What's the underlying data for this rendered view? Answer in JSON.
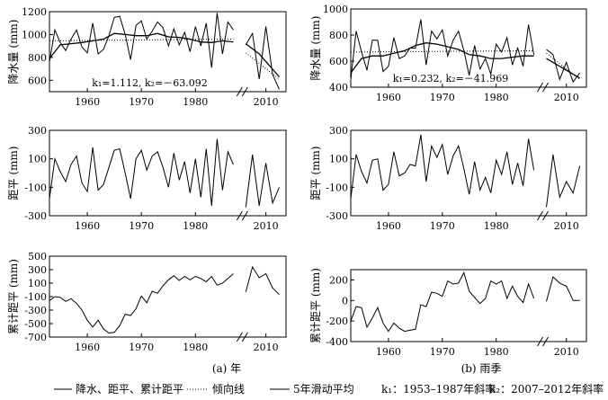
{
  "captions": {
    "a": "(a) 年",
    "b": "(b) 雨季"
  },
  "legend": {
    "items": [
      {
        "label": "降水、距平、累计距平",
        "style": "solid"
      },
      {
        "label": "倾向线",
        "style": "dotted"
      },
      {
        "label": "5年滑动平均",
        "style": "solid"
      }
    ],
    "k1_note": "k₁：1953–1987年斜率",
    "k2_note": "k₂：2007–2012年斜率"
  },
  "chart_data": [
    {
      "id": "a-precip",
      "type": "line",
      "ylabel": "降水量 (mm)",
      "xlim": [
        1953,
        2013
      ],
      "ylim": [
        500,
        1200
      ],
      "yticks": [
        600,
        800,
        1000,
        1200
      ],
      "xticks": [
        1960,
        1970,
        1980,
        2010
      ],
      "annotation": "k₁=1.112, k₂=－63.092",
      "series": [
        {
          "role": "data",
          "x": [
            1953,
            1954,
            1955,
            1956,
            1957,
            1958,
            1959,
            1960,
            1961,
            1962,
            1963,
            1964,
            1965,
            1966,
            1967,
            1968,
            1969,
            1970,
            1971,
            1972,
            1973,
            1974,
            1975,
            1976,
            1977,
            1978,
            1979,
            1980,
            1981,
            1982,
            1983,
            1984,
            1985,
            1986,
            1987,
            2007,
            2008,
            2009,
            2010,
            2011,
            2012
          ],
          "y": [
            760,
            1040,
            930,
            860,
            960,
            1040,
            890,
            840,
            1100,
            830,
            870,
            990,
            1150,
            1160,
            1000,
            780,
            1080,
            1120,
            960,
            1030,
            1110,
            1060,
            900,
            1050,
            910,
            1020,
            850,
            1070,
            900,
            1100,
            710,
            1190,
            830,
            1110,
            1040,
            910,
            1010,
            610,
            1070,
            650,
            520
          ]
        },
        {
          "role": "5年滑动平均",
          "x": [
            1953,
            1955,
            1957,
            1959,
            1961,
            1963,
            1965,
            1967,
            1969,
            1971,
            1973,
            1975,
            1977,
            1979,
            1981,
            1983,
            1985,
            1987,
            2007,
            2009,
            2012
          ],
          "y": [
            790,
            910,
            920,
            930,
            945,
            960,
            1010,
            1000,
            990,
            990,
            1010,
            980,
            975,
            960,
            935,
            930,
            945,
            935,
            920,
            830,
            630
          ]
        },
        {
          "role": "倾向线",
          "x": [
            1953,
            1987
          ],
          "y": [
            945,
            960
          ]
        },
        {
          "role": "倾向线",
          "x": [
            2007,
            2012
          ],
          "y": [
            840,
            610
          ]
        }
      ]
    },
    {
      "id": "a-anomaly",
      "type": "line",
      "ylabel": "距平 (mm)",
      "xlim": [
        1953,
        2013
      ],
      "ylim": [
        -300,
        300
      ],
      "yticks": [
        -300,
        -100,
        100,
        300
      ],
      "xticks": [
        1960,
        1970,
        1980,
        2010
      ],
      "series": [
        {
          "role": "data",
          "x": [
            1953,
            1954,
            1955,
            1956,
            1957,
            1958,
            1959,
            1960,
            1961,
            1962,
            1963,
            1964,
            1965,
            1966,
            1967,
            1968,
            1969,
            1970,
            1971,
            1972,
            1973,
            1974,
            1975,
            1976,
            1977,
            1978,
            1979,
            1980,
            1981,
            1982,
            1983,
            1984,
            1985,
            1986,
            1987,
            2007,
            2008,
            2009,
            2010,
            2011,
            2012
          ],
          "y": [
            -180,
            100,
            10,
            -60,
            60,
            120,
            -70,
            -130,
            180,
            -120,
            -80,
            40,
            160,
            170,
            0,
            -180,
            100,
            160,
            20,
            120,
            150,
            40,
            -100,
            140,
            -50,
            80,
            -140,
            100,
            -170,
            170,
            -230,
            240,
            -120,
            150,
            60,
            -240,
            130,
            -230,
            70,
            -210,
            -100
          ]
        }
      ]
    },
    {
      "id": "a-cumulative",
      "type": "line",
      "ylabel": "累计距平 (mm)",
      "xlim": [
        1953,
        2013
      ],
      "ylim": [
        -700,
        500
      ],
      "yticks": [
        -700,
        -500,
        -300,
        -100,
        100,
        300,
        500
      ],
      "xticks": [
        1960,
        1970,
        1980,
        2010
      ],
      "series": [
        {
          "role": "data",
          "x": [
            1953,
            1954,
            1955,
            1956,
            1957,
            1958,
            1959,
            1960,
            1961,
            1962,
            1963,
            1964,
            1965,
            1966,
            1967,
            1968,
            1969,
            1970,
            1971,
            1972,
            1973,
            1974,
            1975,
            1976,
            1977,
            1978,
            1979,
            1980,
            1981,
            1982,
            1983,
            1984,
            1985,
            1986,
            1987,
            2007,
            2008,
            2009,
            2010,
            2011,
            2012
          ],
          "y": [
            -160,
            -100,
            -110,
            -170,
            -130,
            -200,
            -300,
            -450,
            -550,
            -450,
            -580,
            -640,
            -630,
            -530,
            -360,
            -380,
            -280,
            -90,
            -190,
            -20,
            -50,
            60,
            150,
            210,
            140,
            200,
            150,
            200,
            170,
            120,
            200,
            70,
            100,
            170,
            240,
            -30,
            340,
            180,
            240,
            30,
            -70
          ]
        }
      ]
    },
    {
      "id": "b-precip",
      "type": "line",
      "ylabel": "降水量 (mm)",
      "xlim": [
        1953,
        2013
      ],
      "ylim": [
        400,
        1000
      ],
      "yticks": [
        400,
        600,
        800,
        1000
      ],
      "xticks": [
        1960,
        1970,
        1980,
        2010
      ],
      "annotation": "k₁=0.232, k₂=－41.969",
      "series": [
        {
          "role": "data",
          "x": [
            1953,
            1954,
            1955,
            1956,
            1957,
            1958,
            1959,
            1960,
            1961,
            1962,
            1963,
            1964,
            1965,
            1966,
            1967,
            1968,
            1969,
            1970,
            1971,
            1972,
            1973,
            1974,
            1975,
            1976,
            1977,
            1978,
            1979,
            1980,
            1981,
            1982,
            1983,
            1984,
            1985,
            1986,
            1987,
            2007,
            2008,
            2009,
            2010,
            2011,
            2012
          ],
          "y": [
            460,
            830,
            670,
            530,
            760,
            760,
            520,
            560,
            780,
            620,
            640,
            700,
            700,
            920,
            570,
            830,
            770,
            840,
            640,
            760,
            830,
            680,
            490,
            720,
            540,
            620,
            500,
            730,
            670,
            780,
            570,
            700,
            560,
            880,
            650,
            690,
            650,
            460,
            590,
            440,
            510
          ]
        },
        {
          "role": "5年滑动平均",
          "x": [
            1953,
            1955,
            1957,
            1959,
            1961,
            1963,
            1965,
            1967,
            1969,
            1971,
            1973,
            1975,
            1977,
            1979,
            1981,
            1983,
            1985,
            1987,
            2007,
            2009,
            2012
          ],
          "y": [
            510,
            620,
            640,
            640,
            660,
            680,
            720,
            740,
            730,
            710,
            690,
            650,
            640,
            620,
            620,
            630,
            640,
            640,
            620,
            560,
            470
          ]
        },
        {
          "role": "倾向线",
          "x": [
            1953,
            1987
          ],
          "y": [
            670,
            680
          ]
        },
        {
          "role": "倾向线",
          "x": [
            2007,
            2012
          ],
          "y": [
            660,
            460
          ]
        }
      ]
    },
    {
      "id": "b-anomaly",
      "type": "line",
      "ylabel": "距平 (mm)",
      "xlim": [
        1953,
        2013
      ],
      "ylim": [
        -300,
        300
      ],
      "yticks": [
        -300,
        -100,
        100,
        300
      ],
      "xticks": [
        1960,
        1970,
        1980,
        2010
      ],
      "series": [
        {
          "role": "data",
          "x": [
            1953,
            1954,
            1955,
            1956,
            1957,
            1958,
            1959,
            1960,
            1961,
            1962,
            1963,
            1964,
            1965,
            1966,
            1967,
            1968,
            1969,
            1970,
            1971,
            1972,
            1973,
            1974,
            1975,
            1976,
            1977,
            1978,
            1979,
            1980,
            1981,
            1982,
            1983,
            1984,
            1985,
            1986,
            1987,
            2007,
            2008,
            2009,
            2010,
            2011,
            2012
          ],
          "y": [
            -180,
            130,
            10,
            -70,
            90,
            100,
            -120,
            -80,
            150,
            -20,
            0,
            60,
            50,
            270,
            -60,
            190,
            110,
            200,
            -10,
            120,
            190,
            30,
            -150,
            80,
            -120,
            -30,
            -140,
            90,
            -10,
            150,
            -80,
            70,
            -90,
            240,
            20,
            -240,
            130,
            -170,
            -60,
            -140,
            50
          ]
        }
      ]
    },
    {
      "id": "b-cumulative",
      "type": "line",
      "ylabel": "累计距平 (mm)",
      "xlim": [
        1953,
        2013
      ],
      "ylim": [
        -400,
        300
      ],
      "yticks": [
        -400,
        -200,
        0,
        200
      ],
      "xticks": [
        1960,
        1970,
        1980,
        2010
      ],
      "series": [
        {
          "role": "data",
          "x": [
            1953,
            1954,
            1955,
            1956,
            1957,
            1958,
            1959,
            1960,
            1961,
            1962,
            1963,
            1964,
            1965,
            1966,
            1967,
            1968,
            1969,
            1970,
            1971,
            1972,
            1973,
            1974,
            1975,
            1976,
            1977,
            1978,
            1979,
            1980,
            1981,
            1982,
            1983,
            1984,
            1985,
            1986,
            1987,
            2007,
            2008,
            2009,
            2010,
            2011,
            2012
          ],
          "y": [
            -200,
            -60,
            -70,
            -260,
            -170,
            -70,
            -220,
            -300,
            -220,
            -270,
            -300,
            -290,
            -280,
            -40,
            -60,
            80,
            70,
            40,
            190,
            160,
            170,
            270,
            90,
            30,
            -30,
            20,
            190,
            160,
            190,
            20,
            140,
            40,
            -20,
            160,
            20,
            -10,
            230,
            170,
            140,
            0,
            0
          ]
        }
      ]
    }
  ]
}
